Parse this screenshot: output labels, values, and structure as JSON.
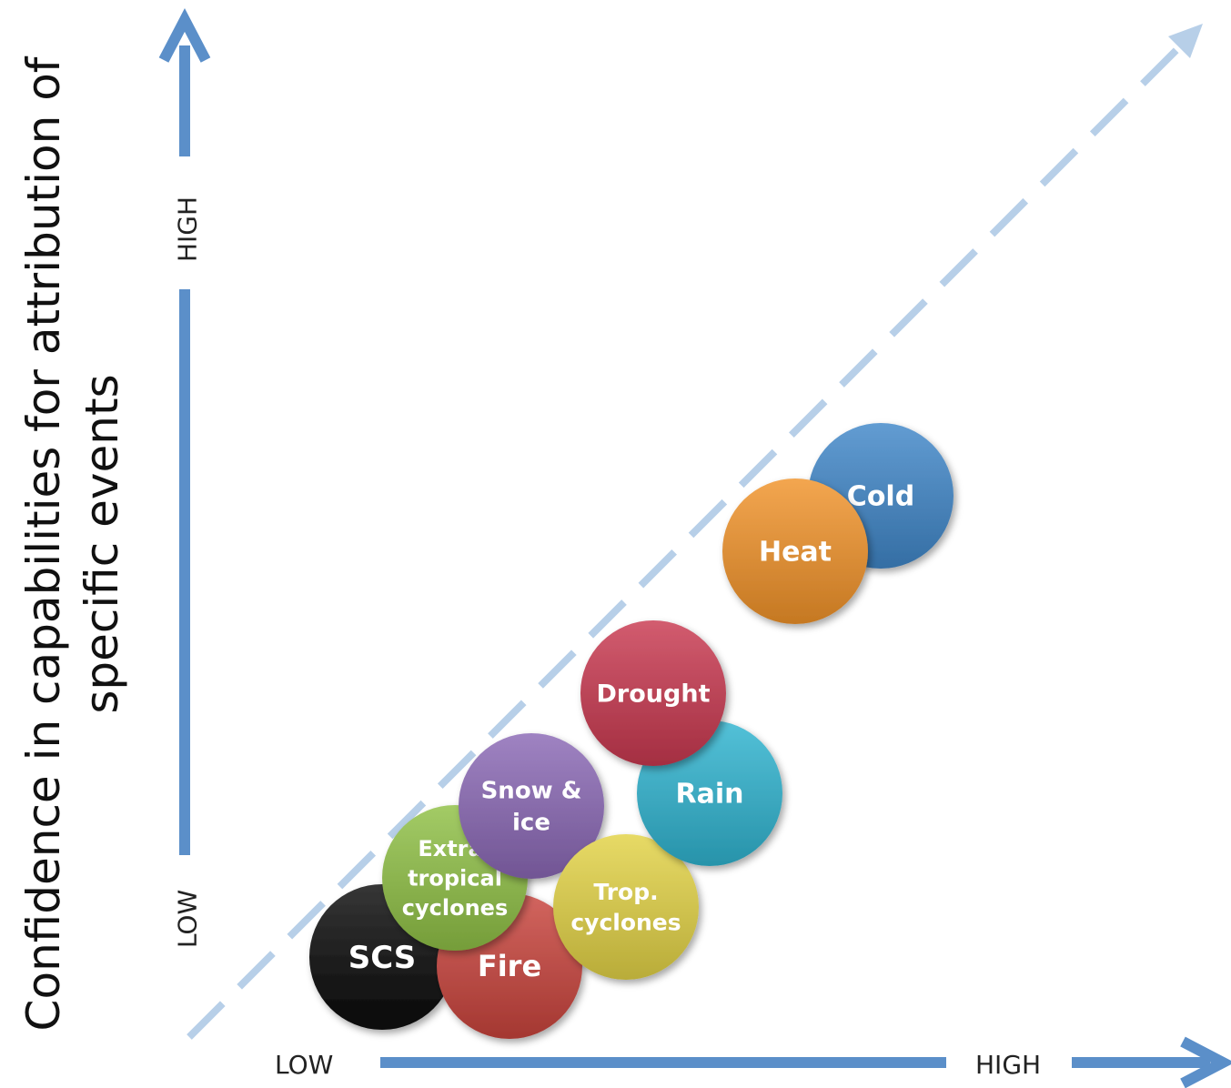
{
  "y_axis": {
    "label_line1": "Confidence in capabilities for attribution of",
    "label_line2": "specific events",
    "low": "LOW",
    "high": "HIGH"
  },
  "x_axis": {
    "low": "LOW",
    "high": "HIGH"
  },
  "colors": {
    "axis": "#5b8fc9",
    "diagonal": "#b7cfe8"
  },
  "events": [
    {
      "id": "scs",
      "lines": [
        "SCS"
      ],
      "color": "#0a0a0a"
    },
    {
      "id": "fire",
      "lines": [
        "Fire"
      ],
      "color": "#c8433c"
    },
    {
      "id": "extratropical",
      "lines": [
        "Extra-",
        "tropical",
        "cyclones"
      ],
      "color": "#8fbf45"
    },
    {
      "id": "snow",
      "lines": [
        "Snow &",
        "ice"
      ],
      "color": "#8a68b5"
    },
    {
      "id": "trop",
      "lines": [
        "Trop.",
        "cyclones"
      ],
      "color": "#e2d245"
    },
    {
      "id": "rain",
      "lines": [
        "Rain"
      ],
      "color": "#2fb3cf"
    },
    {
      "id": "drought",
      "lines": [
        "Drought"
      ],
      "color": "#c8384f"
    },
    {
      "id": "cold",
      "lines": [
        "Cold"
      ],
      "color": "#3f86c8"
    },
    {
      "id": "heat",
      "lines": [
        "Heat"
      ],
      "color": "#f0922a"
    }
  ]
}
